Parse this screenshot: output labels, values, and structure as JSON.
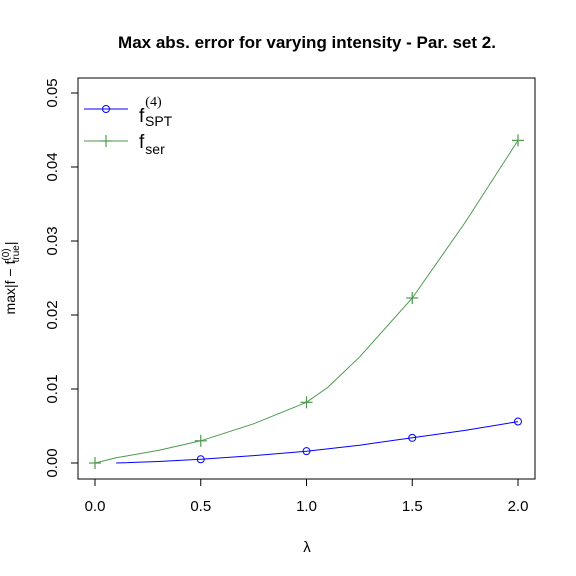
{
  "chart_data": {
    "type": "line",
    "title": "Max abs. error for varying intensity - Par. set 2.",
    "xlabel": "λ",
    "ylabel": {
      "main": "max|f − f",
      "superscript": "(0)",
      "subscript": "true",
      "close": "|"
    },
    "xlim": [
      0.0,
      2.0
    ],
    "ylim": [
      0.0,
      0.05
    ],
    "x_ticks": [
      "0.0",
      "0.5",
      "1.0",
      "1.5",
      "2.0"
    ],
    "y_ticks": [
      "0.00",
      "0.01",
      "0.02",
      "0.03",
      "0.04",
      "0.05"
    ],
    "grid": false,
    "legend_position": "top-left",
    "series": [
      {
        "name": "f_SPT^(4)",
        "label": {
          "main": "f",
          "subscript": "SPT",
          "superscript": "(4)"
        },
        "color": "#0000ff",
        "marker": "circle",
        "x": [
          0.5,
          1.0,
          1.5,
          2.0
        ],
        "y": [
          0.0005,
          0.0016,
          0.0034,
          0.0056
        ],
        "curve": {
          "x": [
            0.1,
            0.3,
            0.5,
            0.75,
            1.0,
            1.25,
            1.5,
            1.75,
            2.0
          ],
          "y": [
            0.0,
            0.0002,
            0.0005,
            0.001,
            0.0016,
            0.0024,
            0.0034,
            0.0044,
            0.0056
          ]
        }
      },
      {
        "name": "f_ser",
        "label": {
          "main": "f",
          "subscript": "ser",
          "superscript": ""
        },
        "color": "#4c9a4c",
        "marker": "plus",
        "x": [
          0.0,
          0.5,
          1.0,
          1.5,
          2.0
        ],
        "y": [
          0.0,
          0.003,
          0.0082,
          0.0223,
          0.0436
        ],
        "curve": {
          "x": [
            0.0,
            0.1,
            0.3,
            0.5,
            0.75,
            1.0,
            1.1,
            1.25,
            1.5,
            1.75,
            2.0
          ],
          "y": [
            0.0,
            0.0007,
            0.0017,
            0.003,
            0.0053,
            0.0082,
            0.0102,
            0.0143,
            0.0223,
            0.0325,
            0.0436
          ]
        }
      }
    ]
  }
}
